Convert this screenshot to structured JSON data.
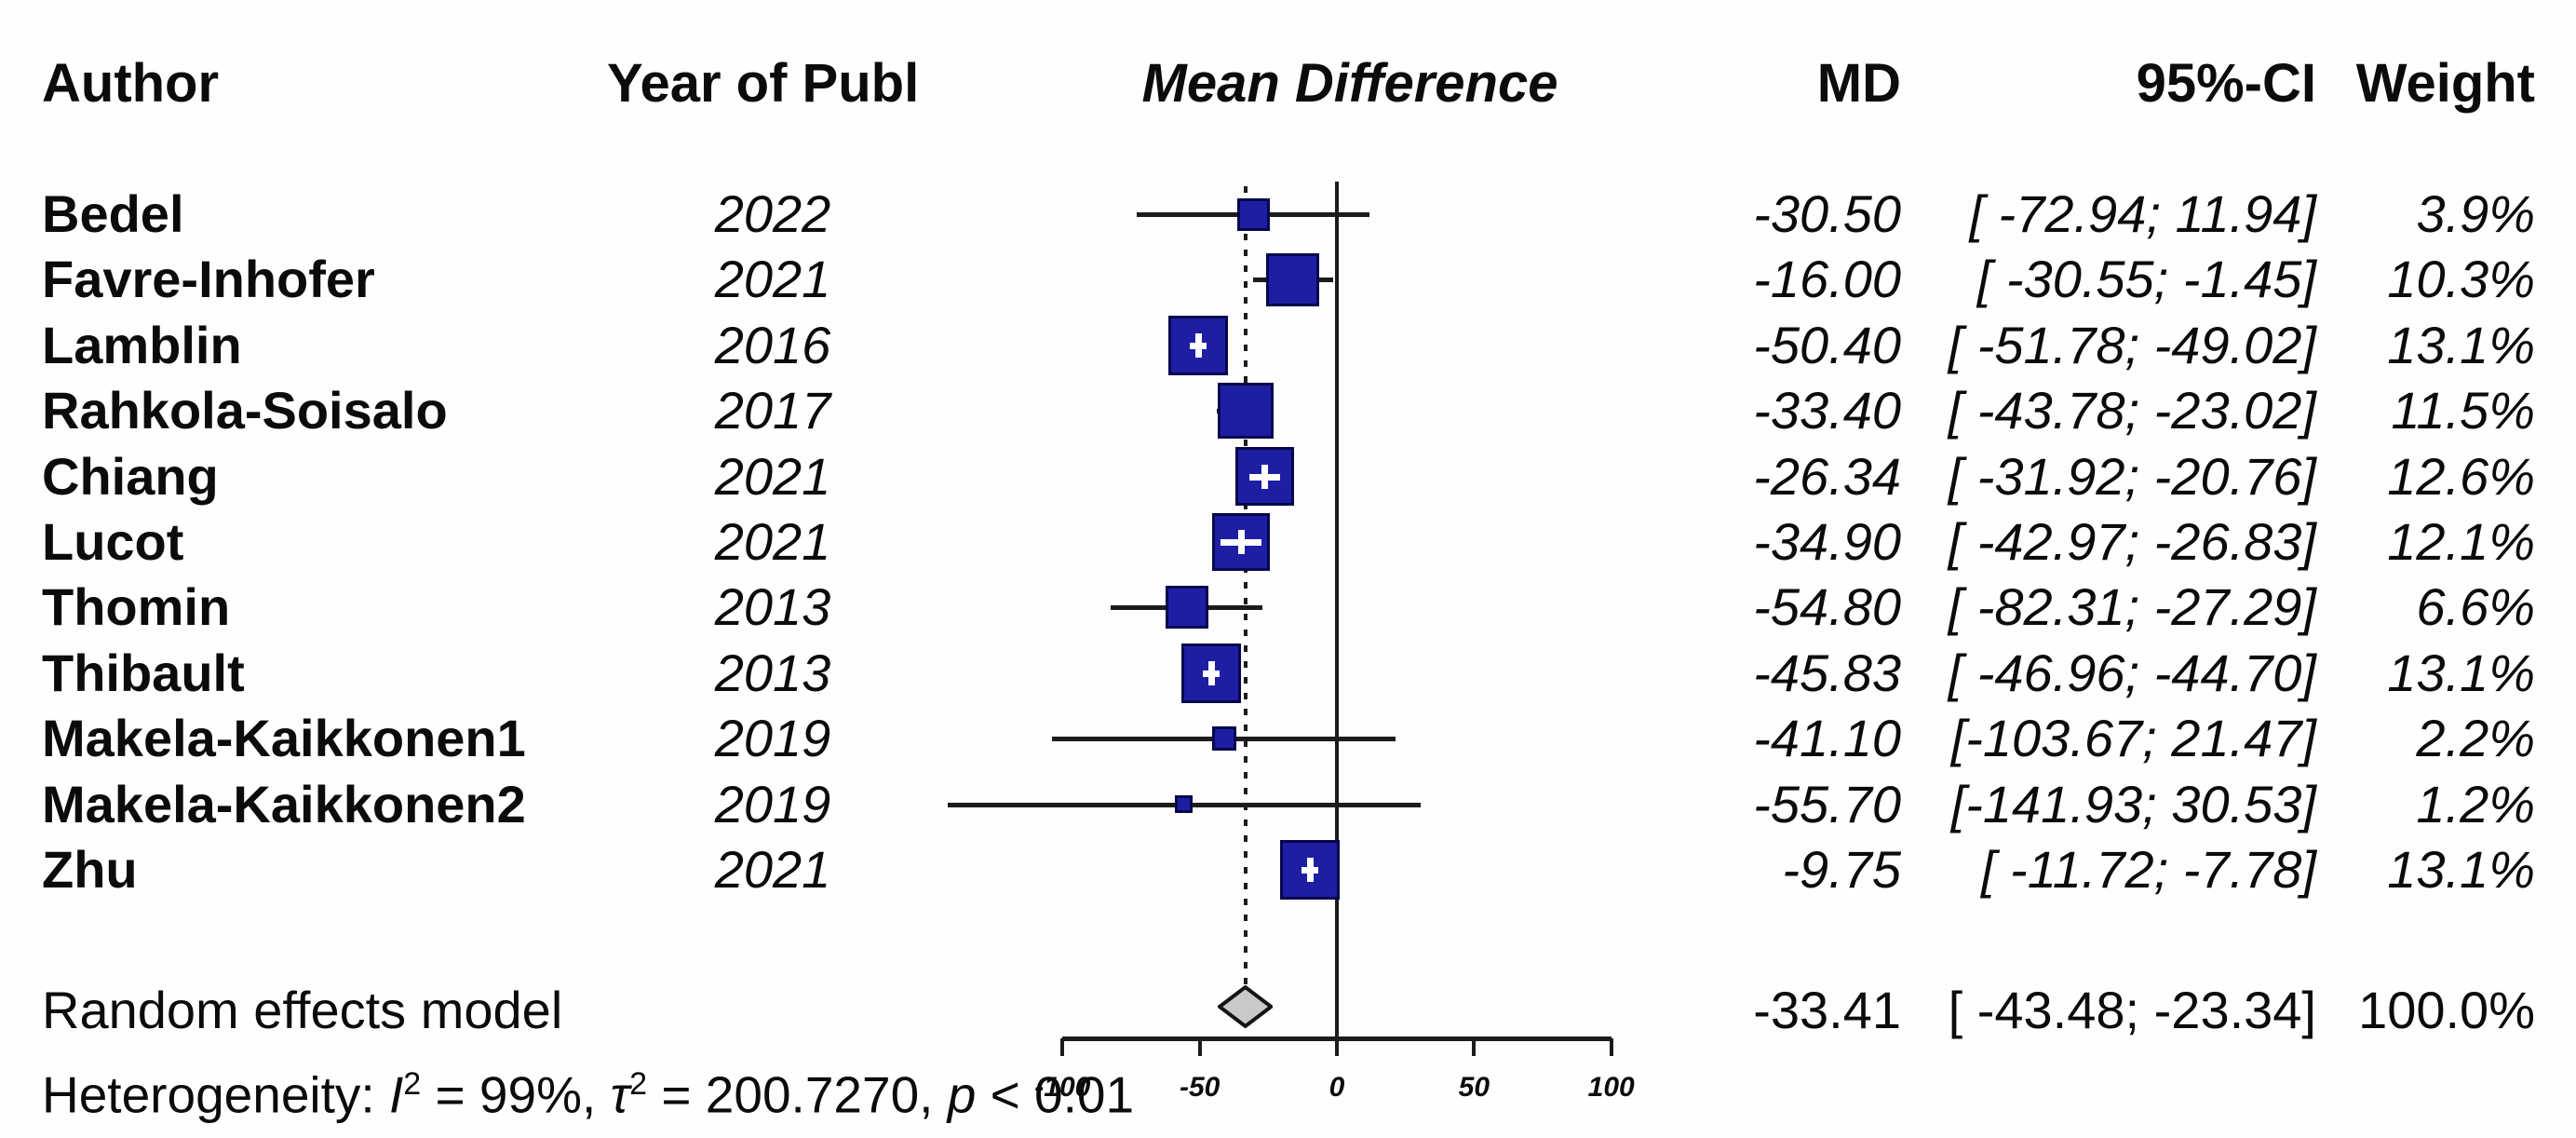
{
  "header": {
    "author": "Author",
    "year": "Year of Publ",
    "plot_title": "Mean Difference",
    "md": "MD",
    "ci": "95%-CI",
    "weight": "Weight"
  },
  "chart_data": {
    "type": "forest",
    "x_axis": {
      "min": -100,
      "max": 100,
      "ticks": [
        -100,
        -50,
        0,
        50,
        100
      ],
      "tick_labels": [
        "-100",
        "-50",
        "0",
        "50",
        "100"
      ],
      "reference_line": 0,
      "dashed_line_at": -33.41
    },
    "studies": [
      {
        "author": "Bedel",
        "year": "2022",
        "md": -30.5,
        "ci_lo": -72.94,
        "ci_hi": 11.94,
        "weight": 3.9,
        "md_label": "-30.50",
        "ci_label": "[ -72.94; 11.94]",
        "weight_label": "3.9%"
      },
      {
        "author": "Favre-Inhofer",
        "year": "2021",
        "md": -16.0,
        "ci_lo": -30.55,
        "ci_hi": -1.45,
        "weight": 10.3,
        "md_label": "-16.00",
        "ci_label": "[ -30.55; -1.45]",
        "weight_label": "10.3%"
      },
      {
        "author": "Lamblin",
        "year": "2016",
        "md": -50.4,
        "ci_lo": -51.78,
        "ci_hi": -49.02,
        "weight": 13.1,
        "md_label": "-50.40",
        "ci_label": "[ -51.78; -49.02]",
        "weight_label": "13.1%"
      },
      {
        "author": "Rahkola-Soisalo",
        "year": "2017",
        "md": -33.4,
        "ci_lo": -43.78,
        "ci_hi": -23.02,
        "weight": 11.5,
        "md_label": "-33.40",
        "ci_label": "[ -43.78; -23.02]",
        "weight_label": "11.5%"
      },
      {
        "author": "Chiang",
        "year": "2021",
        "md": -26.34,
        "ci_lo": -31.92,
        "ci_hi": -20.76,
        "weight": 12.6,
        "md_label": "-26.34",
        "ci_label": "[ -31.92; -20.76]",
        "weight_label": "12.6%"
      },
      {
        "author": "Lucot",
        "year": "2021",
        "md": -34.9,
        "ci_lo": -42.97,
        "ci_hi": -26.83,
        "weight": 12.1,
        "md_label": "-34.90",
        "ci_label": "[ -42.97; -26.83]",
        "weight_label": "12.1%"
      },
      {
        "author": "Thomin",
        "year": "2013",
        "md": -54.8,
        "ci_lo": -82.31,
        "ci_hi": -27.29,
        "weight": 6.6,
        "md_label": "-54.80",
        "ci_label": "[ -82.31; -27.29]",
        "weight_label": "6.6%"
      },
      {
        "author": "Thibault",
        "year": "2013",
        "md": -45.83,
        "ci_lo": -46.96,
        "ci_hi": -44.7,
        "weight": 13.1,
        "md_label": "-45.83",
        "ci_label": "[ -46.96; -44.70]",
        "weight_label": "13.1%"
      },
      {
        "author": "Makela-Kaikkonen1",
        "year": "2019",
        "md": -41.1,
        "ci_lo": -103.67,
        "ci_hi": 21.47,
        "weight": 2.2,
        "md_label": "-41.10",
        "ci_label": "[-103.67; 21.47]",
        "weight_label": "2.2%"
      },
      {
        "author": "Makela-Kaikkonen2",
        "year": "2019",
        "md": -55.7,
        "ci_lo": -141.93,
        "ci_hi": 30.53,
        "weight": 1.2,
        "md_label": "-55.70",
        "ci_label": "[-141.93; 30.53]",
        "weight_label": "1.2%"
      },
      {
        "author": "Zhu",
        "year": "2021",
        "md": -9.75,
        "ci_lo": -11.72,
        "ci_hi": -7.78,
        "weight": 13.1,
        "md_label": "-9.75",
        "ci_label": "[ -11.72; -7.78]",
        "weight_label": "13.1%"
      }
    ],
    "summary": {
      "label": "Random effects model",
      "md": -33.41,
      "ci_lo": -43.48,
      "ci_hi": -23.34,
      "md_label": "-33.41",
      "ci_label": "[ -43.48; -23.34]",
      "weight_label": "100.0%"
    },
    "heterogeneity": {
      "prefix": "Heterogeneity: ",
      "i_sym": "I",
      "i_sup": "2",
      "i_rest": " = 99%, ",
      "tau_sym": "τ",
      "tau_sup": "2",
      "tau_rest": " = 200.7270, ",
      "p_sym": "p",
      "p_rest": " < 0.01"
    }
  },
  "colors": {
    "square_fill": "#1e1ea3",
    "square_border": "#07074e",
    "diamond_fill": "#c9c9c9",
    "diamond_border": "#151515",
    "line": "#1c1c1c",
    "text": "#0b0b0b"
  }
}
